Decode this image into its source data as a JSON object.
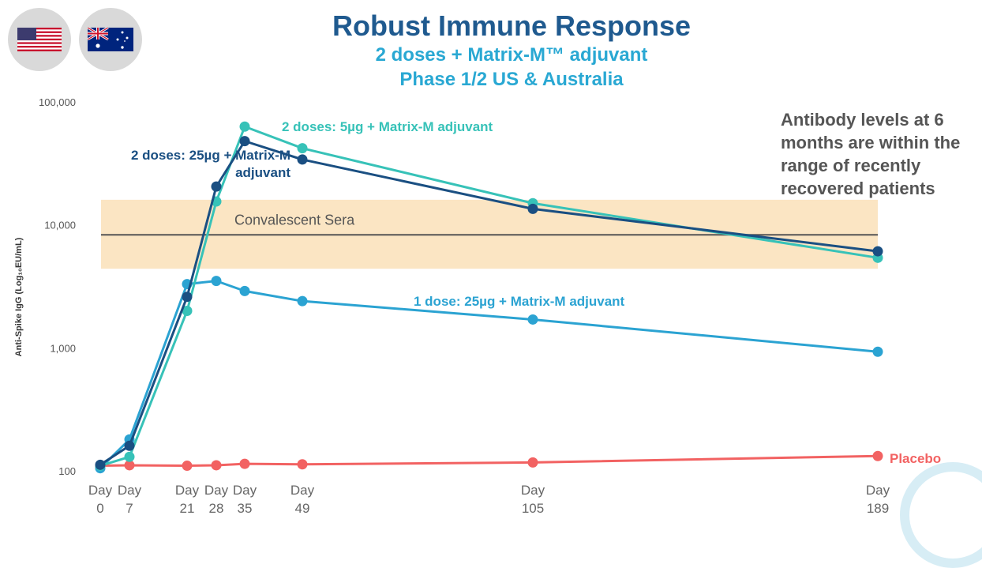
{
  "title": "Robust Immune Response",
  "subtitle1": "2 doses + Matrix-M™ adjuvant",
  "subtitle2": "Phase 1/2 US & Australia",
  "flags": [
    "us-flag-icon",
    "australia-flag-icon"
  ],
  "annotation": "Antibody levels at 6 months are within the range of recently recovered patients",
  "chart_data": {
    "type": "line",
    "scale": "log",
    "ylabel": "Anti-Spike IgG (Log₁₀EU/mL)",
    "ylim": [
      100,
      100000
    ],
    "ytick_labels": [
      "100",
      "1,000",
      "10,000",
      "100,000"
    ],
    "yticks": [
      100,
      1000,
      10000,
      100000
    ],
    "x_ticks": [
      {
        "day": 0,
        "line1": "Day",
        "line2": "0"
      },
      {
        "day": 7,
        "line1": "Day",
        "line2": "7"
      },
      {
        "day": 21,
        "line1": "Day",
        "line2": "21"
      },
      {
        "day": 28,
        "line1": "Day",
        "line2": "28"
      },
      {
        "day": 35,
        "line1": "Day",
        "line2": "35"
      },
      {
        "day": 49,
        "line1": "Day",
        "line2": "49"
      },
      {
        "day": 105,
        "line1": "Day",
        "line2": "105"
      },
      {
        "day": 189,
        "line1": "Day",
        "line2": "189"
      }
    ],
    "band": {
      "label": "Convalescent Sera",
      "low": 4400,
      "high": 16000,
      "median": 8300,
      "color": "#fbe5c3",
      "line_color": "#555555"
    },
    "series": [
      {
        "name": "2 doses: 5µg + Matrix-M adjuvant",
        "color": "#37c2b8",
        "label_color": "#37c2b8",
        "x": [
          0,
          7,
          21,
          28,
          35,
          49,
          105,
          189
        ],
        "y": [
          110,
          130,
          2000,
          15500,
          63000,
          42000,
          15000,
          5400
        ]
      },
      {
        "name": "2 doses: 25µg + Matrix-M adjuvant",
        "label_lines": [
          "2 doses: 25µg + Matrix-M",
          "adjuvant"
        ],
        "color": "#1a4f82",
        "label_color": "#1a4f82",
        "x": [
          0,
          7,
          21,
          28,
          35,
          49,
          105,
          189
        ],
        "y": [
          112,
          160,
          2600,
          20500,
          48000,
          34000,
          13500,
          6100
        ]
      },
      {
        "name": "1 dose: 25µg + Matrix-M adjuvant",
        "color": "#2ba3d2",
        "label_color": "#2ba3d2",
        "x": [
          0,
          7,
          21,
          28,
          35,
          49,
          105,
          189
        ],
        "y": [
          105,
          180,
          3300,
          3500,
          2900,
          2400,
          1700,
          930
        ]
      },
      {
        "name": "Placebo",
        "color": "#f26262",
        "label_color": "#f26262",
        "x": [
          0,
          7,
          21,
          28,
          35,
          49,
          105,
          189
        ],
        "y": [
          110,
          111,
          110,
          111,
          114,
          113,
          117,
          132
        ]
      }
    ]
  }
}
